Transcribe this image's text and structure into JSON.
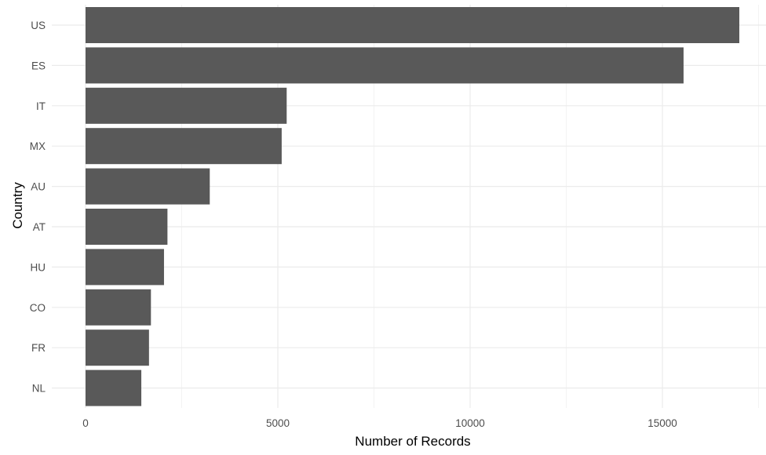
{
  "chart_data": {
    "type": "bar",
    "orientation": "horizontal",
    "categories": [
      "US",
      "ES",
      "IT",
      "MX",
      "AU",
      "AT",
      "HU",
      "CO",
      "FR",
      "NL"
    ],
    "values": [
      17000,
      15550,
      5230,
      5100,
      3230,
      2130,
      2040,
      1700,
      1650,
      1450
    ],
    "xlabel": "Number of Records",
    "ylabel": "Country",
    "xlim": [
      0,
      17700
    ],
    "xticks": [
      0,
      5000,
      10000,
      15000
    ],
    "xtick_labels": [
      "0",
      "5000",
      "10000",
      "15000"
    ],
    "grid": true,
    "legend": "none",
    "bar_color": "#595959",
    "grid_major_color": "#ebebeb",
    "grid_minor_color": "#f3f3f3"
  }
}
